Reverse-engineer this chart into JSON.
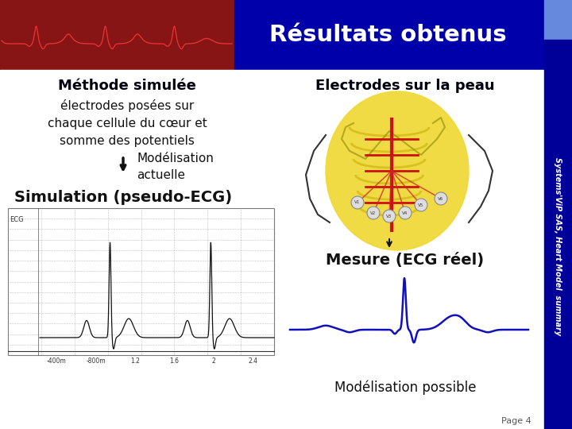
{
  "title": "Résultats obtenus",
  "method_title": "Méthode simulée",
  "method_subtitle": "électrodes posées sur\nchaque cellule du cœur et\nsomme des potentiels",
  "model_label": "Modélisation\nactuelle",
  "sim_label": "Simulation (pseudo-ECG)",
  "electrodes_title": "Electrodes sur la peau",
  "measure_label": "Mesure (ECG réel)",
  "model_possible": "Modélisation possible",
  "sidebar_text": "Systems'ViP SAS, Heart Model  summary",
  "page_label": "Page 4",
  "title_bg": "#0000AA",
  "left_header_bg": "#8B1515",
  "sidebar_bg": "#0000AA",
  "sidebar_light": "#7799EE",
  "white": "#FFFFFF",
  "dark_text": "#111111",
  "ecg_grid_color": "#AAAAAA",
  "ecg_signal_color": "#111111",
  "real_ecg_color": "#1111BB",
  "arrow_color": "#111111"
}
